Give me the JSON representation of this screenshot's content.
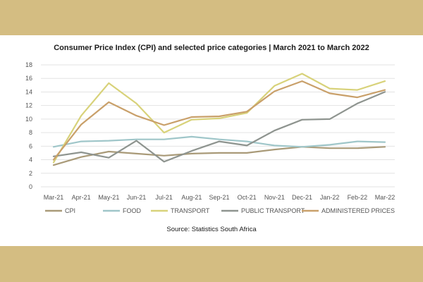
{
  "chart_data": {
    "type": "line",
    "title": "Consumer Price Index (CPI) and selected price categories | March 2021 to March 2022",
    "source": "Source: Statistics South Africa",
    "categories": [
      "Mar-21",
      "Apr-21",
      "May-21",
      "Jun-21",
      "Jul-21",
      "Aug-21",
      "Sep-21",
      "Oct-21",
      "Nov-21",
      "Dec-21",
      "Jan-22",
      "Feb-22",
      "Mar-22"
    ],
    "yticks": [
      "0",
      "2",
      "4",
      "6",
      "8",
      "10",
      "12",
      "14",
      "16",
      "18"
    ],
    "ylim": [
      0,
      18
    ],
    "grid": "horizontal",
    "legend_position": "bottom",
    "series": [
      {
        "name": "CPI",
        "color": "#a99a78",
        "values": [
          3.2,
          4.4,
          5.2,
          4.9,
          4.6,
          4.9,
          5.0,
          5.0,
          5.5,
          5.9,
          5.7,
          5.7,
          5.9
        ]
      },
      {
        "name": "FOOD",
        "color": "#9fc6c9",
        "values": [
          5.9,
          6.7,
          6.8,
          7.0,
          7.0,
          7.4,
          7.0,
          6.7,
          6.1,
          5.9,
          6.2,
          6.7,
          6.6
        ]
      },
      {
        "name": "TRANSPORT",
        "color": "#d8d27a",
        "values": [
          3.6,
          10.5,
          15.3,
          12.3,
          8.0,
          9.9,
          10.1,
          10.9,
          14.9,
          16.7,
          14.5,
          14.3,
          15.6
        ]
      },
      {
        "name": "PUBLIC TRANSPORT",
        "color": "#8e948f",
        "values": [
          4.5,
          5.1,
          4.3,
          6.8,
          3.7,
          5.3,
          6.7,
          6.1,
          8.3,
          9.9,
          10.0,
          12.3,
          14.0
        ]
      },
      {
        "name": "ADMINISTERED PRICES",
        "color": "#c9a06a",
        "values": [
          4.0,
          9.2,
          12.5,
          10.5,
          9.1,
          10.3,
          10.4,
          11.1,
          14.1,
          15.6,
          13.8,
          13.2,
          14.3
        ]
      }
    ]
  }
}
